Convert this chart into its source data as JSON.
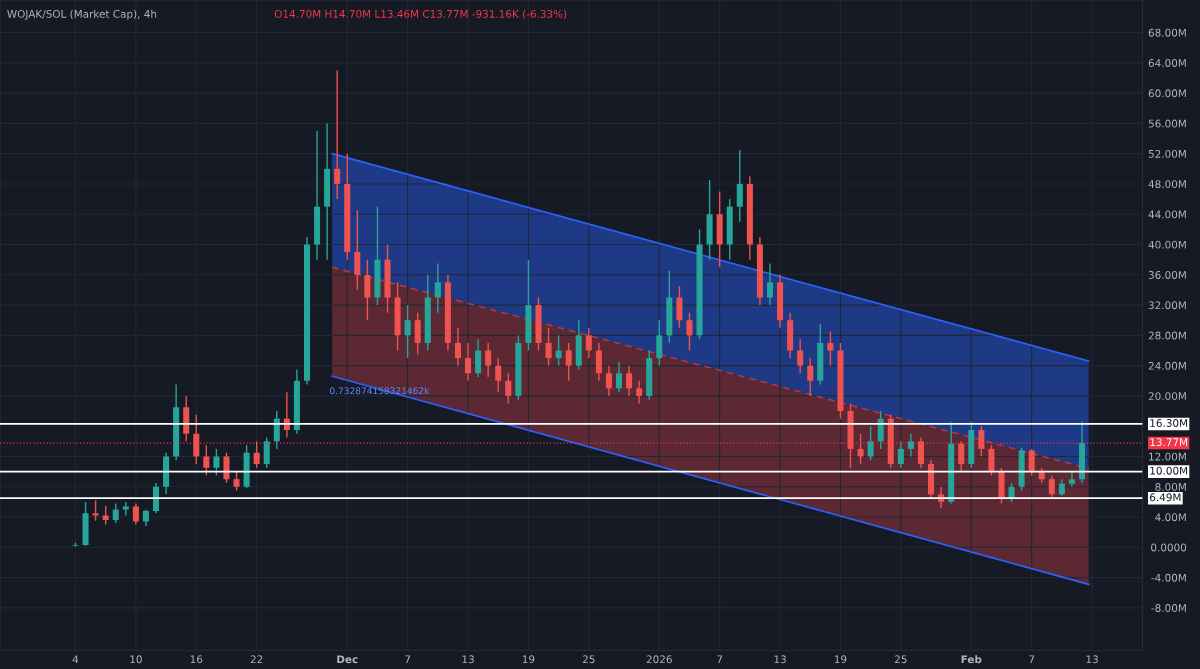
{
  "chart_data": {
    "type": "candlestick",
    "title": "WOJAK/SOL (Market Cap), 4h",
    "subtitle": "O14.70M H14.70M L13.46M C13.77M -931.16K (-6.33%)",
    "x": [
      "2025-11-04",
      "2025-11-05",
      "2025-11-06",
      "2025-11-07",
      "2025-11-08",
      "2025-11-09",
      "2025-11-10",
      "2025-11-11",
      "2025-11-12",
      "2025-11-13",
      "2025-11-14",
      "2025-11-15",
      "2025-11-16",
      "2025-11-17",
      "2025-11-18",
      "2025-11-19",
      "2025-11-20",
      "2025-11-21",
      "2025-11-22",
      "2025-11-23",
      "2025-11-24",
      "2025-11-25",
      "2025-11-26",
      "2025-11-27",
      "2025-11-28",
      "2025-11-29",
      "2025-11-30",
      "2025-12-01",
      "2025-12-02",
      "2025-12-03",
      "2025-12-04",
      "2025-12-05",
      "2025-12-06",
      "2025-12-07",
      "2025-12-08",
      "2025-12-09",
      "2025-12-10",
      "2025-12-11",
      "2025-12-12",
      "2025-12-13",
      "2025-12-14",
      "2025-12-15",
      "2025-12-16",
      "2025-12-17",
      "2025-12-18",
      "2025-12-19",
      "2025-12-20",
      "2025-12-21",
      "2025-12-22",
      "2025-12-23",
      "2025-12-24",
      "2025-12-25",
      "2025-12-26",
      "2025-12-27",
      "2025-12-28",
      "2025-12-29",
      "2025-12-30",
      "2025-12-31",
      "2026-01-01",
      "2026-01-02",
      "2026-01-03",
      "2026-01-04",
      "2026-01-05",
      "2026-01-06",
      "2026-01-07",
      "2026-01-08",
      "2026-01-09",
      "2026-01-10",
      "2026-01-11",
      "2026-01-12",
      "2026-01-13",
      "2026-01-14",
      "2026-01-15",
      "2026-01-16",
      "2026-01-17",
      "2026-01-18",
      "2026-01-19",
      "2026-01-20",
      "2026-01-21",
      "2026-01-22",
      "2026-01-23",
      "2026-01-24",
      "2026-01-25",
      "2026-01-26",
      "2026-01-27",
      "2026-01-28",
      "2026-01-29",
      "2026-01-30",
      "2026-01-31",
      "2026-02-01",
      "2026-02-02",
      "2026-02-03",
      "2026-02-04",
      "2026-02-05",
      "2026-02-06",
      "2026-02-07",
      "2026-02-08",
      "2026-02-09",
      "2026-02-10",
      "2026-02-11",
      "2026-02-12"
    ],
    "ohlc": [
      [
        0.2,
        0.6,
        0.1,
        0.3
      ],
      [
        0.3,
        6.0,
        0.2,
        4.5
      ],
      [
        4.5,
        6.2,
        3.5,
        4.2
      ],
      [
        4.2,
        5.5,
        3.0,
        3.6
      ],
      [
        3.6,
        5.8,
        3.2,
        5.0
      ],
      [
        5.0,
        6.0,
        4.2,
        5.4
      ],
      [
        5.4,
        5.8,
        3.0,
        3.4
      ],
      [
        3.4,
        5.0,
        2.8,
        4.8
      ],
      [
        4.8,
        8.5,
        4.5,
        8.0
      ],
      [
        8.0,
        12.5,
        7.0,
        12.0
      ],
      [
        12.0,
        21.5,
        11.5,
        18.5
      ],
      [
        18.5,
        20.0,
        14.0,
        15.0
      ],
      [
        15.0,
        17.5,
        11.0,
        12.0
      ],
      [
        12.0,
        13.5,
        9.5,
        10.5
      ],
      [
        10.5,
        13.0,
        9.5,
        12.0
      ],
      [
        12.0,
        12.5,
        8.5,
        9.0
      ],
      [
        9.0,
        10.0,
        7.5,
        8.0
      ],
      [
        8.0,
        13.5,
        7.8,
        12.5
      ],
      [
        12.5,
        14.0,
        10.5,
        11.0
      ],
      [
        11.0,
        14.5,
        10.5,
        14.0
      ],
      [
        14.0,
        18.0,
        13.0,
        17.0
      ],
      [
        17.0,
        20.5,
        14.5,
        15.5
      ],
      [
        15.5,
        23.5,
        15.0,
        22.0
      ],
      [
        22.0,
        41.0,
        21.5,
        40.0
      ],
      [
        40.0,
        55.0,
        38.0,
        45.0
      ],
      [
        45.0,
        56.0,
        38.0,
        50.0
      ],
      [
        50.0,
        63.0,
        46.0,
        48.0
      ],
      [
        48.0,
        52.0,
        38.0,
        39.0
      ],
      [
        39.0,
        44.5,
        34.0,
        36.0
      ],
      [
        36.0,
        38.0,
        30.0,
        33.0
      ],
      [
        33.0,
        45.0,
        32.0,
        38.0
      ],
      [
        38.0,
        40.0,
        31.0,
        33.0
      ],
      [
        33.0,
        35.0,
        26.0,
        28.0
      ],
      [
        28.0,
        32.0,
        25.0,
        30.0
      ],
      [
        30.0,
        31.0,
        25.5,
        27.0
      ],
      [
        27.0,
        36.0,
        26.0,
        33.0
      ],
      [
        33.0,
        37.5,
        31.0,
        35.0
      ],
      [
        35.0,
        36.0,
        26.0,
        27.0
      ],
      [
        27.0,
        29.0,
        24.0,
        25.0
      ],
      [
        25.0,
        27.0,
        22.0,
        23.0
      ],
      [
        23.0,
        27.5,
        22.5,
        26.0
      ],
      [
        26.0,
        27.0,
        22.5,
        24.0
      ],
      [
        24.0,
        25.0,
        20.5,
        22.0
      ],
      [
        22.0,
        23.0,
        19.0,
        20.0
      ],
      [
        20.0,
        28.0,
        19.5,
        27.0
      ],
      [
        27.0,
        38.0,
        26.0,
        32.0
      ],
      [
        32.0,
        33.0,
        26.0,
        27.0
      ],
      [
        27.0,
        29.0,
        24.0,
        25.0
      ],
      [
        25.0,
        28.0,
        24.0,
        26.0
      ],
      [
        26.0,
        27.0,
        22.0,
        24.0
      ],
      [
        24.0,
        30.0,
        23.5,
        28.0
      ],
      [
        28.0,
        29.0,
        25.0,
        26.0
      ],
      [
        26.0,
        27.0,
        22.0,
        23.0
      ],
      [
        23.0,
        24.0,
        20.0,
        21.0
      ],
      [
        21.0,
        24.5,
        20.5,
        23.0
      ],
      [
        23.0,
        24.0,
        20.0,
        21.0
      ],
      [
        21.0,
        22.0,
        19.0,
        20.0
      ],
      [
        20.0,
        26.0,
        19.5,
        25.0
      ],
      [
        25.0,
        30.0,
        24.0,
        28.0
      ],
      [
        28.0,
        36.5,
        27.0,
        33.0
      ],
      [
        33.0,
        34.5,
        29.0,
        30.0
      ],
      [
        30.0,
        31.0,
        26.0,
        28.0
      ],
      [
        28.0,
        42.0,
        27.5,
        40.0
      ],
      [
        40.0,
        48.5,
        38.0,
        44.0
      ],
      [
        44.0,
        47.0,
        37.0,
        40.0
      ],
      [
        40.0,
        46.0,
        38.0,
        45.0
      ],
      [
        45.0,
        52.5,
        43.0,
        48.0
      ],
      [
        48.0,
        49.0,
        38.0,
        40.0
      ],
      [
        40.0,
        41.0,
        32.0,
        33.0
      ],
      [
        33.0,
        37.5,
        32.0,
        35.0
      ],
      [
        35.0,
        36.0,
        29.0,
        30.0
      ],
      [
        30.0,
        31.0,
        25.0,
        26.0
      ],
      [
        26.0,
        27.5,
        23.0,
        24.0
      ],
      [
        24.0,
        25.0,
        20.0,
        22.0
      ],
      [
        22.0,
        29.5,
        21.5,
        27.0
      ],
      [
        27.0,
        28.5,
        24.0,
        26.0
      ],
      [
        26.0,
        27.0,
        17.0,
        18.0
      ],
      [
        18.0,
        19.0,
        10.5,
        13.0
      ],
      [
        13.0,
        15.0,
        11.0,
        12.0
      ],
      [
        12.0,
        16.0,
        11.5,
        14.0
      ],
      [
        14.0,
        18.0,
        13.0,
        17.0
      ],
      [
        17.0,
        17.5,
        10.5,
        11.0
      ],
      [
        11.0,
        14.0,
        10.5,
        13.0
      ],
      [
        13.0,
        15.0,
        12.0,
        14.0
      ],
      [
        14.0,
        14.5,
        10.5,
        11.0
      ],
      [
        11.0,
        11.5,
        6.5,
        7.0
      ],
      [
        7.0,
        8.0,
        5.2,
        6.0
      ],
      [
        6.0,
        16.6,
        5.8,
        13.7
      ],
      [
        13.7,
        14.0,
        10.0,
        11.0
      ],
      [
        11.0,
        16.6,
        10.5,
        15.5
      ],
      [
        15.5,
        16.0,
        12.0,
        13.0
      ],
      [
        13.0,
        13.5,
        9.5,
        10.0
      ],
      [
        10.0,
        10.5,
        5.8,
        6.5
      ],
      [
        6.5,
        8.5,
        6.0,
        8.0
      ],
      [
        8.0,
        13.2,
        7.5,
        12.8
      ],
      [
        12.8,
        13.0,
        9.5,
        10.0
      ],
      [
        10.0,
        10.5,
        8.5,
        9.0
      ],
      [
        9.0,
        9.5,
        6.6,
        7.0
      ],
      [
        7.0,
        9.0,
        6.8,
        8.4
      ],
      [
        8.4,
        10.0,
        8.0,
        9.0
      ],
      [
        9.0,
        16.6,
        8.5,
        13.77
      ]
    ],
    "colors": [
      "#26a69a",
      "#26a69a",
      "#ef5350",
      "#ef5350",
      "#26a69a",
      "#26a69a",
      "#ef5350",
      "#26a69a",
      "#26a69a",
      "#26a69a",
      "#26a69a",
      "#ef5350",
      "#ef5350",
      "#ef5350",
      "#26a69a",
      "#ef5350",
      "#ef5350",
      "#26a69a",
      "#ef5350",
      "#26a69a",
      "#26a69a",
      "#ef5350",
      "#26a69a",
      "#26a69a",
      "#26a69a",
      "#26a69a",
      "#ef5350",
      "#ef5350",
      "#ef5350",
      "#ef5350",
      "#26a69a",
      "#ef5350",
      "#ef5350",
      "#26a69a",
      "#ef5350",
      "#26a69a",
      "#26a69a",
      "#ef5350",
      "#ef5350",
      "#ef5350",
      "#26a69a",
      "#ef5350",
      "#ef5350",
      "#ef5350",
      "#26a69a",
      "#26a69a",
      "#ef5350",
      "#ef5350",
      "#26a69a",
      "#ef5350",
      "#26a69a",
      "#ef5350",
      "#ef5350",
      "#ef5350",
      "#26a69a",
      "#ef5350",
      "#ef5350",
      "#26a69a",
      "#26a69a",
      "#26a69a",
      "#ef5350",
      "#ef5350",
      "#26a69a",
      "#26a69a",
      "#ef5350",
      "#26a69a",
      "#26a69a",
      "#ef5350",
      "#ef5350",
      "#26a69a",
      "#ef5350",
      "#ef5350",
      "#ef5350",
      "#ef5350",
      "#26a69a",
      "#ef5350",
      "#ef5350",
      "#ef5350",
      "#ef5350",
      "#26a69a",
      "#26a69a",
      "#ef5350",
      "#26a69a",
      "#26a69a",
      "#ef5350",
      "#ef5350",
      "#ef5350",
      "#26a69a",
      "#ef5350",
      "#26a69a",
      "#ef5350",
      "#ef5350",
      "#ef5350",
      "#26a69a",
      "#26a69a",
      "#ef5350",
      "#ef5350",
      "#ef5350",
      "#26a69a",
      "#26a69a",
      "#26a69a"
    ],
    "series": [
      {
        "type": "line",
        "color": "#2962ff",
        "x": [
          "2025-11-29T12:00",
          "2026-02-12T16:00"
        ],
        "values": [
          52.0,
          24.6
        ],
        "lower": [
          37.0,
          10.4
        ],
        "upper": [
          52.0,
          24.6
        ]
      },
      {
        "type": "line",
        "color": "#b23a48",
        "line_style": "dashed",
        "x": [
          "2025-11-29T12:00",
          "2026-02-12T16:00"
        ],
        "values": [
          37.0,
          10.4
        ],
        "lower": [
          22.6,
          -4.9
        ],
        "upper": [
          37.0,
          10.4
        ]
      },
      {
        "type": "line",
        "color": "#2962ff",
        "x": [
          "2025-11-29T12:00",
          "2026-02-12T16:00"
        ],
        "values": [
          22.6,
          -4.9
        ]
      }
    ],
    "ref_lines": [
      {
        "axis": "y",
        "value": 16.3,
        "label": "16.30M",
        "color": "#ffffff",
        "line_style": "solid"
      },
      {
        "axis": "y",
        "value": 13.77,
        "label": "13.77M",
        "color": "#f23645",
        "line_style": "dotted"
      },
      {
        "axis": "y",
        "value": 10.0,
        "label": "10.00M",
        "color": "#ffffff",
        "line_style": "solid"
      },
      {
        "axis": "y",
        "value": 6.49,
        "label": "6.49M",
        "color": "#ffffff",
        "line_style": "solid"
      }
    ],
    "annotations": [
      {
        "text": "0.732874158321462k",
        "x": "2025-11-29T12:00",
        "y": 22.6
      }
    ],
    "xlim": [
      "2025-10-27T12:00",
      "2026-02-18"
    ],
    "xticks": [
      {
        "value": "2025-11-04",
        "label": "4"
      },
      {
        "value": "2025-11-10",
        "label": "10"
      },
      {
        "value": "2025-11-16",
        "label": "16"
      },
      {
        "value": "2025-11-22",
        "label": "22"
      },
      {
        "value": "2025-12-01",
        "label": "Dec"
      },
      {
        "value": "2025-12-07",
        "label": "7"
      },
      {
        "value": "2025-12-13",
        "label": "13"
      },
      {
        "value": "2025-12-19",
        "label": "19"
      },
      {
        "value": "2025-12-25",
        "label": "25"
      },
      {
        "value": "2026-01-01",
        "label": "2026"
      },
      {
        "value": "2026-01-07",
        "label": "7"
      },
      {
        "value": "2026-01-13",
        "label": "13"
      },
      {
        "value": "2026-01-19",
        "label": "19"
      },
      {
        "value": "2026-01-25",
        "label": "25"
      },
      {
        "value": "2026-02-01",
        "label": "Feb"
      },
      {
        "value": "2026-02-07",
        "label": "7"
      },
      {
        "value": "2026-02-13",
        "label": "13"
      }
    ],
    "ylim": [
      -13.6,
      72.3
    ],
    "yticks": [
      {
        "value": 68,
        "label": "68.00M"
      },
      {
        "value": 64,
        "label": "64.00M"
      },
      {
        "value": 60,
        "label": "60.00M"
      },
      {
        "value": 56,
        "label": "56.00M"
      },
      {
        "value": 52,
        "label": "52.00M"
      },
      {
        "value": 48,
        "label": "48.00M"
      },
      {
        "value": 44,
        "label": "44.00M"
      },
      {
        "value": 40,
        "label": "40.00M"
      },
      {
        "value": 36,
        "label": "36.00M"
      },
      {
        "value": 32,
        "label": "32.00M"
      },
      {
        "value": 28,
        "label": "28.00M"
      },
      {
        "value": 24,
        "label": "24.00M"
      },
      {
        "value": 20,
        "label": "20.00M"
      },
      {
        "value": 12,
        "label": "12.00M"
      },
      {
        "value": 8,
        "label": "8.00M"
      },
      {
        "value": 4,
        "label": "4.00M"
      },
      {
        "value": 0,
        "label": "0.0000"
      },
      {
        "value": -4,
        "label": "-4.00M"
      },
      {
        "value": -8,
        "label": "-8.00M"
      }
    ],
    "grid": true,
    "legend": false
  }
}
